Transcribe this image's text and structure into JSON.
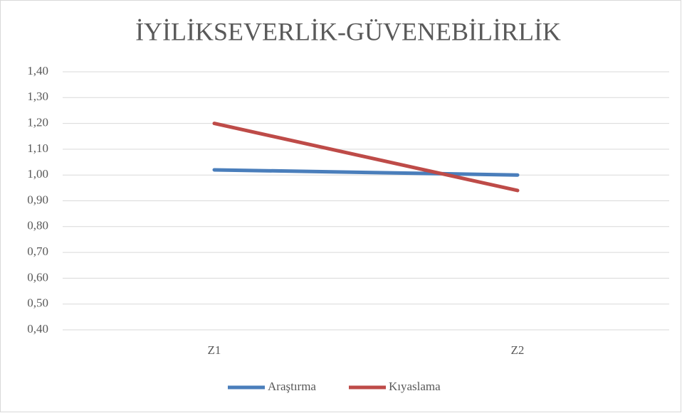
{
  "chart_data": {
    "type": "line",
    "title": "İYİLİKSEVERLİK-GÜVENEBİLİRLİK",
    "categories": [
      "Z1",
      "Z2"
    ],
    "series": [
      {
        "name": "Araştırma",
        "color": "#4a7ebb",
        "values": [
          1.02,
          1.0
        ]
      },
      {
        "name": "Kıyaslama",
        "color": "#be4b48",
        "values": [
          1.2,
          0.94
        ]
      }
    ],
    "ylim": [
      0.4,
      1.4
    ],
    "yticks": [
      {
        "value": 0.4,
        "label": "0,40"
      },
      {
        "value": 0.5,
        "label": "0,50"
      },
      {
        "value": 0.6,
        "label": "0,60"
      },
      {
        "value": 0.7,
        "label": "0,70"
      },
      {
        "value": 0.8,
        "label": "0,80"
      },
      {
        "value": 0.9,
        "label": "0,90"
      },
      {
        "value": 1.0,
        "label": "1,00"
      },
      {
        "value": 1.1,
        "label": "1,10"
      },
      {
        "value": 1.2,
        "label": "1,20"
      },
      {
        "value": 1.3,
        "label": "1,30"
      },
      {
        "value": 1.4,
        "label": "1,40"
      }
    ],
    "grid": true,
    "legend": "bottom"
  }
}
